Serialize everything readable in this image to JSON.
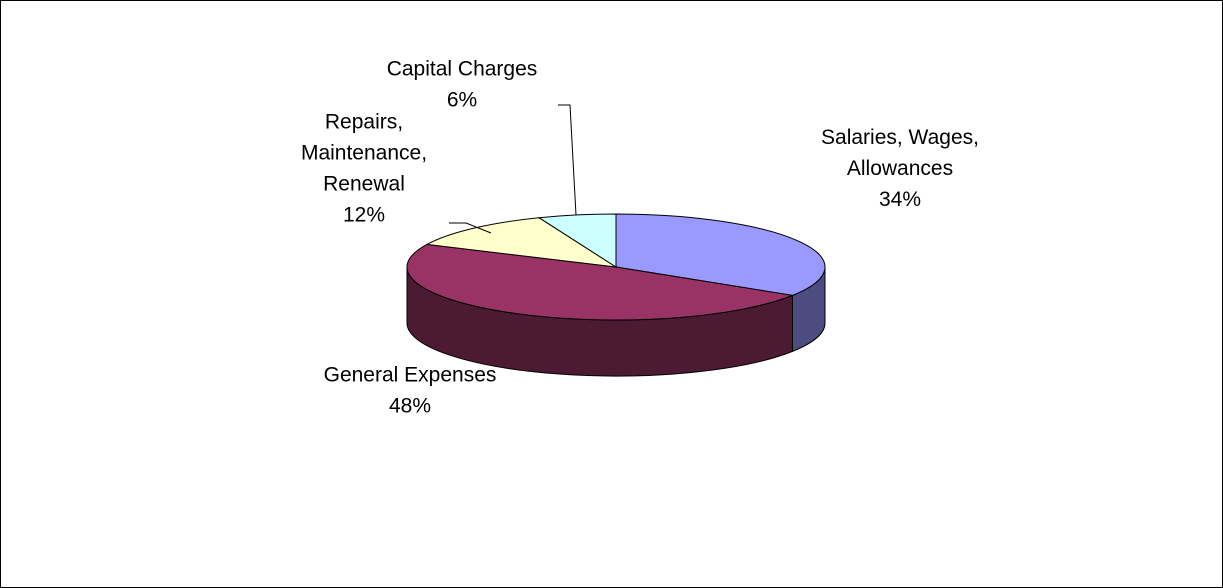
{
  "chart_data": {
    "type": "pie",
    "title": "",
    "style": "3d",
    "slices": [
      {
        "label_lines": [
          "Salaries, Wages,",
          "Allowances"
        ],
        "percent_label": "34%",
        "value": 34,
        "color": "#9999ff",
        "side_color": "#4c4c80"
      },
      {
        "label_lines": [
          "General Expenses"
        ],
        "percent_label": "48%",
        "value": 48,
        "color": "#993366",
        "side_color": "#4d1a33"
      },
      {
        "label_lines": [
          "Repairs,",
          "Maintenance,",
          "Renewal"
        ],
        "percent_label": "12%",
        "value": 12,
        "color": "#ffffcc",
        "side_color": "#808066"
      },
      {
        "label_lines": [
          "Capital Charges"
        ],
        "percent_label": "6%",
        "value": 6,
        "color": "#ccffff",
        "side_color": "#668080"
      }
    ],
    "legend": "none"
  }
}
